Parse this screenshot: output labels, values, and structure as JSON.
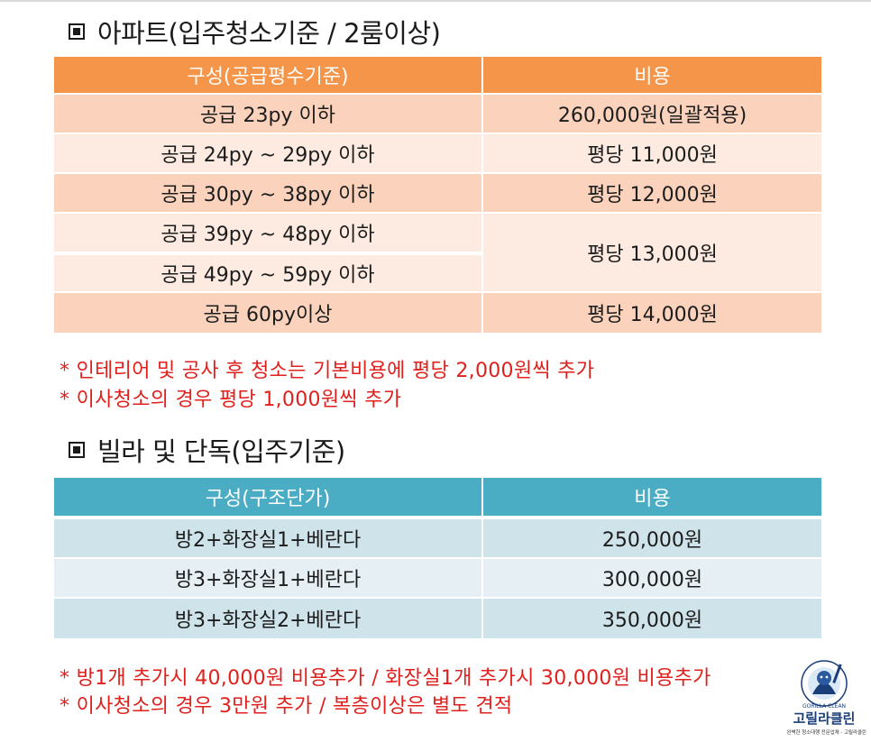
{
  "apartment": {
    "title": "아파트(입주청소기준 / 2룸이상)",
    "headers": [
      "구성(공급평수기준)",
      "비용"
    ],
    "rows": [
      {
        "size": "공급 23py 이하",
        "price": "260,000원(일괄적용)"
      },
      {
        "size": "공급 24py ~ 29py 이하",
        "price": "평당 11,000원"
      },
      {
        "size": "공급 30py ~ 38py 이하",
        "price": "평당 12,000원"
      },
      {
        "size": "공급 39py ~ 48py 이하",
        "price": "평당 13,000원"
      },
      {
        "size": "공급 49py ~ 59py 이하",
        "price": ""
      },
      {
        "size": "공급 60py이상",
        "price": "평당 14,000원"
      }
    ],
    "notes": [
      "* 인테리어 및 공사 후 청소는 기본비용에 평당 2,000원씩 추가",
      "* 이사청소의 경우 평당 1,000원씩 추가"
    ]
  },
  "villa": {
    "title": "빌라 및 단독(입주기준)",
    "headers": [
      "구성(구조단가)",
      "비용"
    ],
    "rows": [
      {
        "layout": "방2+화장실1+베란다",
        "price": "250,000원"
      },
      {
        "layout": "방3+화장실1+베란다",
        "price": "300,000원"
      },
      {
        "layout": "방3+화장실2+베란다",
        "price": "350,000원"
      }
    ],
    "notes": [
      "* 방1개 추가시 40,000원 비용추가 / 화장실1개 추가시 30,000원 비용추가",
      "* 이사청소의 경우 3만원 추가 / 복층이상은 별도 견적"
    ]
  },
  "logo": {
    "ring_text": "GORILLA CLEAN",
    "brand": "고릴라클린",
    "tagline": "완벽한 청소대행 전문업체 - 고릴라클린"
  },
  "colors": {
    "apt_header": "#f5954a",
    "villa_header": "#4aadc4",
    "note_red": "#e0201d"
  }
}
